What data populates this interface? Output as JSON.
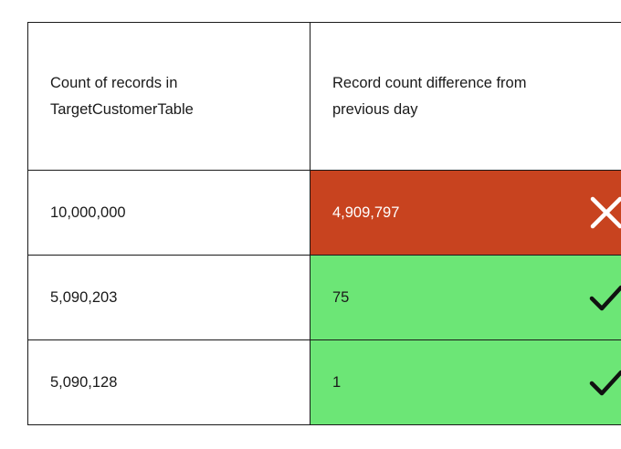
{
  "table": {
    "headers": [
      "Count of records in TargetCustomerTable",
      "Record count difference from previous day"
    ],
    "rows": [
      {
        "count": "10,000,000",
        "difference": "4,909,797",
        "status": "fail",
        "status_icon": "x-icon",
        "status_color": "#c8431f"
      },
      {
        "count": "5,090,203",
        "difference": "75",
        "status": "pass",
        "status_icon": "check-icon",
        "status_color": "#6ce676"
      },
      {
        "count": "5,090,128",
        "difference": "1",
        "status": "pass",
        "status_icon": "check-icon",
        "status_color": "#6ce676"
      }
    ]
  }
}
